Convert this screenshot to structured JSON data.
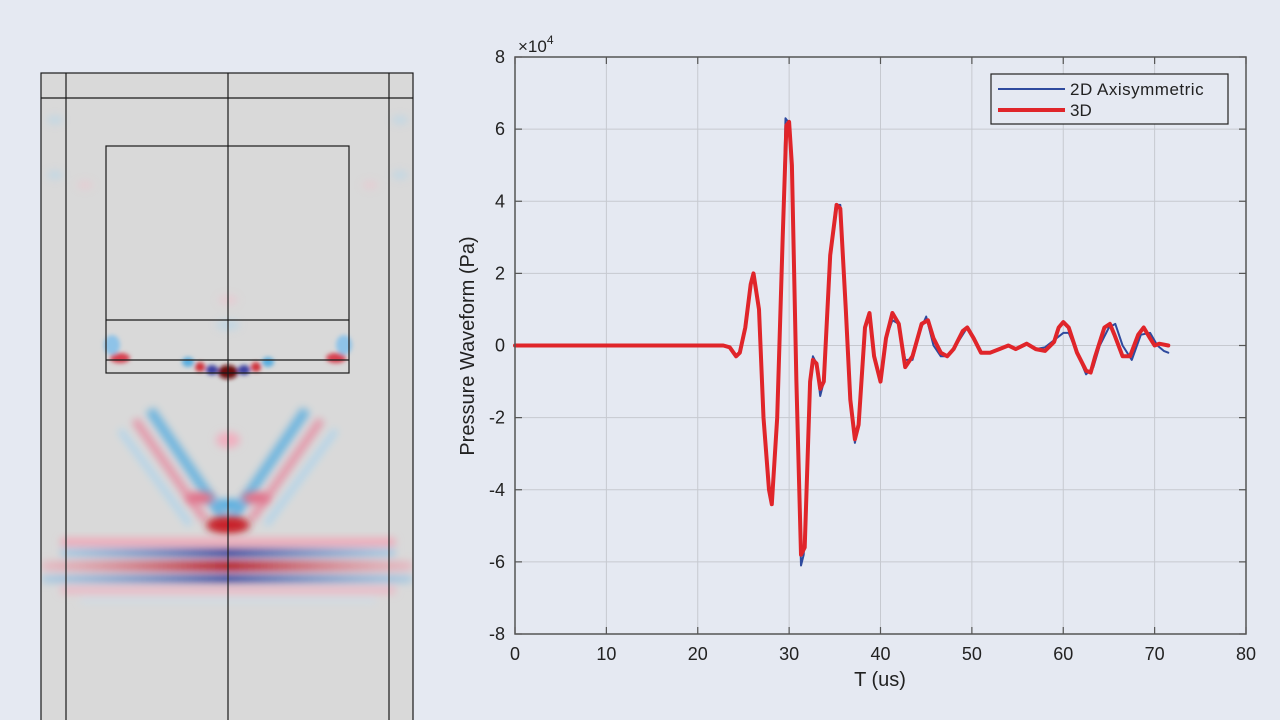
{
  "simulation_panel": {
    "description": "Acoustic pressure field snapshot (2D axisymmetric cross-section)",
    "colors": {
      "background": "#d9d9d9",
      "positive": "#c8202a",
      "negative": "#3a5bbf",
      "light_positive": "#f0b8c6",
      "light_negative": "#8ec3e8",
      "lines": "#1a1a1a"
    }
  },
  "chart_data": {
    "type": "line",
    "title": "",
    "xlabel": "T (us)",
    "ylabel": "Pressure Waveform (Pa)",
    "y_multiplier": "×10^4",
    "y_multiplier_base": "×10",
    "y_multiplier_exp": "4",
    "xlim": [
      0,
      80
    ],
    "ylim": [
      -8,
      8
    ],
    "xticks": [
      0,
      10,
      20,
      30,
      40,
      50,
      60,
      70,
      80
    ],
    "yticks": [
      8,
      6,
      4,
      2,
      0,
      -2,
      -4,
      -6,
      -8
    ],
    "grid": true,
    "legend_position": "upper right",
    "series": [
      {
        "name": "2D Axisymmetric",
        "color": "#2e4a9e",
        "width": 2,
        "x": [
          0,
          22.8,
          23.5,
          24.2,
          24.6,
          25.2,
          25.8,
          26.1,
          26.7,
          27.2,
          27.8,
          28.1,
          28.7,
          29.3,
          29.6,
          29.9,
          30.3,
          30.8,
          31.3,
          31.6,
          32.3,
          32.6,
          33.0,
          33.4,
          33.8,
          34.5,
          35.1,
          35.6,
          36.2,
          36.7,
          37.2,
          37.6,
          38.3,
          38.8,
          39.3,
          40.0,
          40.6,
          41.3,
          42.0,
          42.7,
          43.5,
          44.3,
          45.0,
          45.8,
          46.6,
          47.3,
          48.0,
          49.0,
          49.5,
          50.2,
          51.0,
          52,
          53,
          54,
          54.8,
          56,
          57,
          58,
          59,
          60,
          60.6,
          61.5,
          62.5,
          63.3,
          64,
          65,
          65.7,
          66.5,
          67.5,
          68.5,
          69.5,
          70.3,
          71,
          71.5
        ],
        "values": [
          0,
          0,
          -0.05,
          -0.3,
          -0.2,
          0.5,
          1.7,
          2.0,
          1.0,
          -2.0,
          -4.0,
          -4.3,
          -2.0,
          3.0,
          6.3,
          6.2,
          5.0,
          -1.0,
          -6.1,
          -5.8,
          -1.0,
          -0.3,
          -0.5,
          -1.4,
          -1.0,
          2.5,
          3.9,
          3.9,
          1.0,
          -1.5,
          -2.7,
          -2.2,
          0.5,
          0.8,
          -0.3,
          -0.9,
          0.2,
          0.7,
          0.6,
          -0.4,
          -0.4,
          0.4,
          0.8,
          0.0,
          -0.3,
          -0.3,
          -0.1,
          0.3,
          0.5,
          0.2,
          -0.2,
          -0.2,
          -0.1,
          0,
          -0.1,
          0.05,
          -0.1,
          -0.05,
          0.15,
          0.35,
          0.35,
          -0.2,
          -0.8,
          -0.6,
          0.0,
          0.5,
          0.6,
          0.0,
          -0.4,
          0.3,
          0.35,
          0.0,
          -0.15,
          -0.2
        ]
      },
      {
        "name": "3D",
        "color": "#e0252a",
        "width": 4,
        "x": [
          0,
          22.8,
          23.5,
          24.2,
          24.6,
          25.2,
          25.8,
          26.1,
          26.7,
          27.2,
          27.8,
          28.1,
          28.7,
          29.3,
          29.7,
          30.0,
          30.3,
          30.8,
          31.3,
          31.7,
          32.3,
          32.6,
          33.0,
          33.4,
          33.8,
          34.5,
          35.2,
          35.6,
          36.2,
          36.7,
          37.2,
          37.6,
          38.3,
          38.8,
          39.3,
          40.0,
          40.6,
          41.3,
          42.0,
          42.7,
          43.5,
          44.5,
          45.2,
          45.8,
          46.6,
          47.3,
          48.0,
          49.0,
          49.5,
          50.2,
          51.0,
          52,
          53,
          54,
          54.8,
          56,
          57,
          58,
          59,
          59.5,
          60,
          60.6,
          61.5,
          62.5,
          63,
          63.5,
          64.5,
          65.1,
          65.6,
          66.5,
          67.3,
          68.2,
          68.8,
          69.5,
          70,
          70.5,
          71.5
        ],
        "values": [
          0,
          0,
          -0.05,
          -0.3,
          -0.2,
          0.5,
          1.7,
          2.0,
          1.0,
          -2.0,
          -4.0,
          -4.4,
          -2.0,
          3.0,
          6.1,
          6.2,
          5.0,
          -1.0,
          -5.8,
          -5.6,
          -1.0,
          -0.4,
          -0.5,
          -1.2,
          -1.0,
          2.5,
          3.9,
          3.8,
          1.0,
          -1.5,
          -2.6,
          -2.2,
          0.5,
          0.9,
          -0.3,
          -1.0,
          0.2,
          0.9,
          0.6,
          -0.6,
          -0.3,
          0.6,
          0.7,
          0.2,
          -0.2,
          -0.3,
          -0.1,
          0.4,
          0.5,
          0.2,
          -0.2,
          -0.2,
          -0.1,
          0,
          -0.1,
          0.05,
          -0.1,
          -0.15,
          0.1,
          0.5,
          0.65,
          0.5,
          -0.2,
          -0.7,
          -0.75,
          -0.3,
          0.5,
          0.6,
          0.3,
          -0.3,
          -0.3,
          0.3,
          0.5,
          0.2,
          0.0,
          0.05,
          0.0
        ]
      }
    ]
  }
}
